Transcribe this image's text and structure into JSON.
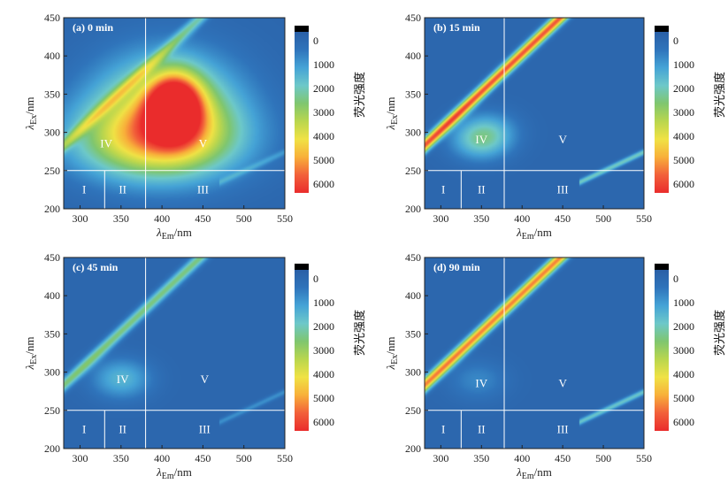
{
  "chart_data": [
    {
      "type": "heatmap",
      "panel_label": "(a) 0 min",
      "xlabel": "λEm/nm",
      "ylabel": "λEx/nm",
      "xlim": [
        280,
        550
      ],
      "ylim": [
        200,
        450
      ],
      "xticks": [
        "300",
        "350",
        "400",
        "450",
        "500",
        "550"
      ],
      "yticks": [
        "200",
        "250",
        "300",
        "350",
        "400",
        "450"
      ],
      "divider_x": [
        330,
        380
      ],
      "divider_y": 250,
      "regions": [
        {
          "label": "I",
          "x": 305,
          "y": 225
        },
        {
          "label": "II",
          "x": 352,
          "y": 225
        },
        {
          "label": "III",
          "x": 450,
          "y": 225
        },
        {
          "label": "IV",
          "x": 332,
          "y": 285
        },
        {
          "label": "V",
          "x": 450,
          "y": 285
        }
      ],
      "peaks": [
        {
          "ex": 335,
          "em": 415,
          "intensity": 5500
        },
        {
          "ex": 330,
          "em": 405,
          "intensity": 3200
        },
        {
          "ex": 290,
          "em": 390,
          "intensity": 3000
        }
      ],
      "scatter_band": {
        "intensity": 1800
      }
    },
    {
      "type": "heatmap",
      "panel_label": "(b) 15 min",
      "xlabel": "λEm/nm",
      "ylabel": "λEx/nm",
      "xlim": [
        280,
        550
      ],
      "ylim": [
        200,
        450
      ],
      "xticks": [
        "300",
        "350",
        "400",
        "450",
        "500",
        "550"
      ],
      "yticks": [
        "200",
        "250",
        "300",
        "350",
        "400",
        "450"
      ],
      "divider_x": [
        325,
        378
      ],
      "divider_y": 250,
      "regions": [
        {
          "label": "I",
          "x": 303,
          "y": 225
        },
        {
          "label": "II",
          "x": 350,
          "y": 225
        },
        {
          "label": "III",
          "x": 450,
          "y": 225
        },
        {
          "label": "IV",
          "x": 350,
          "y": 290
        },
        {
          "label": "V",
          "x": 450,
          "y": 290
        }
      ],
      "peaks": [
        {
          "ex": 290,
          "em": 348,
          "intensity": 1700
        },
        {
          "ex": 305,
          "em": 360,
          "intensity": 800
        }
      ],
      "scatter_band": {
        "intensity": 5200
      }
    },
    {
      "type": "heatmap",
      "panel_label": "(c) 45 min",
      "xlabel": "λEm/nm",
      "ylabel": "λEx/nm",
      "xlim": [
        280,
        550
      ],
      "ylim": [
        200,
        450
      ],
      "xticks": [
        "300",
        "350",
        "400",
        "450",
        "500",
        "550"
      ],
      "yticks": [
        "200",
        "250",
        "300",
        "350",
        "400",
        "450"
      ],
      "divider_x": [
        330,
        380
      ],
      "divider_y": 250,
      "regions": [
        {
          "label": "I",
          "x": 305,
          "y": 225
        },
        {
          "label": "II",
          "x": 352,
          "y": 225
        },
        {
          "label": "III",
          "x": 452,
          "y": 225
        },
        {
          "label": "IV",
          "x": 352,
          "y": 290
        },
        {
          "label": "V",
          "x": 452,
          "y": 290
        }
      ],
      "peaks": [
        {
          "ex": 292,
          "em": 350,
          "intensity": 1400
        }
      ],
      "scatter_band": {
        "intensity": 2300
      }
    },
    {
      "type": "heatmap",
      "panel_label": "(d) 90 min",
      "xlabel": "λEm/nm",
      "ylabel": "λEx/nm",
      "xlim": [
        280,
        550
      ],
      "ylim": [
        200,
        450
      ],
      "xticks": [
        "300",
        "350",
        "400",
        "450",
        "500",
        "550"
      ],
      "yticks": [
        "200",
        "250",
        "300",
        "350",
        "400",
        "450"
      ],
      "divider_x": [
        325,
        378
      ],
      "divider_y": 250,
      "regions": [
        {
          "label": "I",
          "x": 303,
          "y": 225
        },
        {
          "label": "II",
          "x": 350,
          "y": 225
        },
        {
          "label": "III",
          "x": 450,
          "y": 225
        },
        {
          "label": "IV",
          "x": 350,
          "y": 285
        },
        {
          "label": "V",
          "x": 450,
          "y": 285
        }
      ],
      "peaks": [
        {
          "ex": 290,
          "em": 345,
          "intensity": 700
        }
      ],
      "scatter_band": {
        "intensity": 4800
      }
    }
  ],
  "colorbar": {
    "title": "荧光强度",
    "ticks": [
      "0",
      "1000",
      "2000",
      "3000",
      "4000",
      "5000",
      "6000"
    ],
    "range": [
      0,
      6000
    ],
    "colors": [
      "#2a5fa6",
      "#2f74bb",
      "#45a3d6",
      "#6dc8c9",
      "#7fc66f",
      "#b9d64e",
      "#f0e245",
      "#f8b03a",
      "#f2603a",
      "#ea2c2c"
    ],
    "top_color": "#000000"
  }
}
